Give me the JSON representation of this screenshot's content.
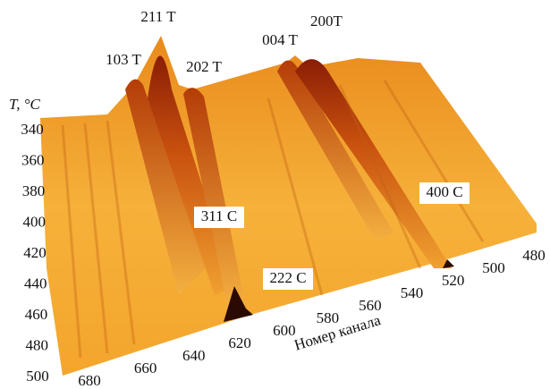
{
  "chart_data": {
    "type": "surface",
    "y_label": "T, °C",
    "x_label": "Номер канала",
    "ylim": [
      340,
      500
    ],
    "yticks": [
      340,
      360,
      380,
      400,
      420,
      440,
      460,
      480,
      500
    ],
    "xlim": [
      680,
      480
    ],
    "xticks": [
      680,
      660,
      640,
      620,
      600,
      580,
      560,
      540,
      520,
      500,
      480
    ],
    "annotations": [
      "103 T",
      "211 T",
      "202 T",
      "004 T",
      "200T",
      "311 C",
      "222 C",
      "400 C"
    ]
  }
}
